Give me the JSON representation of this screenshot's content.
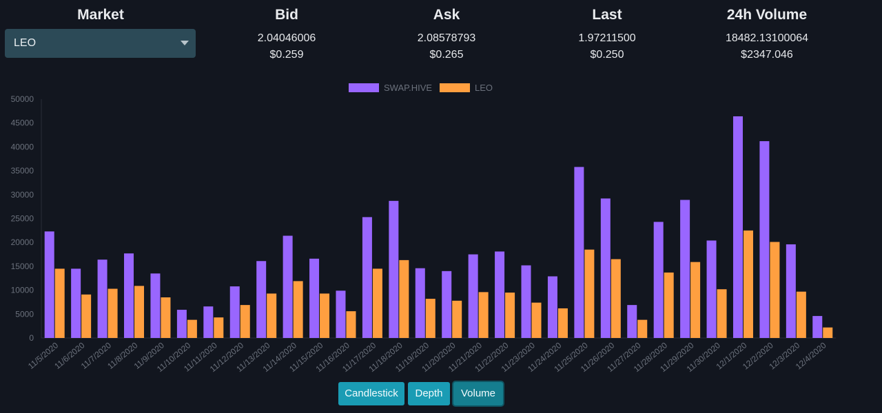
{
  "header": {
    "market_label": "Market",
    "market_selected": "LEO",
    "bid": {
      "label": "Bid",
      "value": "2.04046006",
      "usd": "$0.259"
    },
    "ask": {
      "label": "Ask",
      "value": "2.08578793",
      "usd": "$0.265"
    },
    "last": {
      "label": "Last",
      "value": "1.97211500",
      "usd": "$0.250"
    },
    "volume": {
      "label": "24h Volume",
      "value": "18482.13100064",
      "usd": "$2347.046"
    }
  },
  "tabs": [
    "Candlestick",
    "Depth",
    "Volume"
  ],
  "active_tab": "Volume",
  "colors": {
    "swap_hive": "#9966ff",
    "leo": "#ff9f40",
    "background": "#12161f",
    "tab": "#1a9cb4"
  },
  "chart_data": {
    "type": "bar",
    "categories": [
      "11/5/2020",
      "11/6/2020",
      "11/7/2020",
      "11/8/2020",
      "11/9/2020",
      "11/10/2020",
      "11/11/2020",
      "11/12/2020",
      "11/13/2020",
      "11/14/2020",
      "11/15/2020",
      "11/16/2020",
      "11/17/2020",
      "11/18/2020",
      "11/19/2020",
      "11/20/2020",
      "11/21/2020",
      "11/22/2020",
      "11/23/2020",
      "11/24/2020",
      "11/25/2020",
      "11/26/2020",
      "11/27/2020",
      "11/28/2020",
      "11/29/2020",
      "11/30/2020",
      "12/1/2020",
      "12/2/2020",
      "12/3/2020",
      "12/4/2020"
    ],
    "series": [
      {
        "name": "SWAP.HIVE",
        "color": "#9966ff",
        "values": [
          22300,
          14500,
          16400,
          17700,
          13500,
          5900,
          6600,
          10800,
          16100,
          21400,
          16600,
          9900,
          25300,
          28700,
          14600,
          14000,
          17500,
          18100,
          15200,
          12900,
          35800,
          29200,
          6900,
          24300,
          28900,
          20400,
          46400,
          41200,
          19600,
          4600
        ]
      },
      {
        "name": "LEO",
        "color": "#ff9f40",
        "values": [
          14500,
          9100,
          10300,
          10900,
          8500,
          3800,
          4300,
          6900,
          9300,
          11900,
          9300,
          5600,
          14500,
          16300,
          8200,
          7800,
          9600,
          9500,
          7400,
          6200,
          18500,
          16500,
          3800,
          13700,
          15900,
          10200,
          22500,
          20100,
          9700,
          2200
        ]
      }
    ],
    "ylim": [
      0,
      50000
    ],
    "yticks": [
      0,
      5000,
      10000,
      15000,
      20000,
      25000,
      30000,
      35000,
      40000,
      45000,
      50000
    ],
    "legend_position": "top",
    "grid": false
  }
}
